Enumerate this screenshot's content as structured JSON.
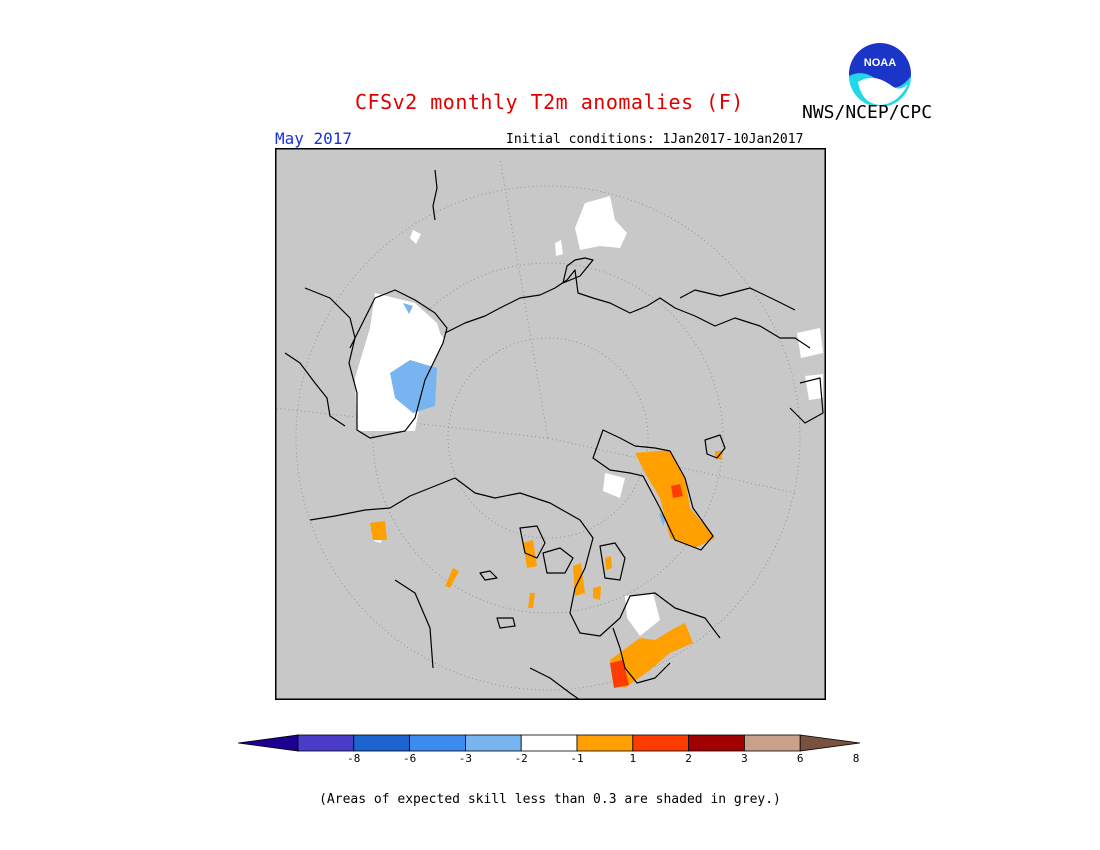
{
  "header": {
    "title": "CFSv2 monthly T2m anomalies (F)",
    "agency": "NWS/NCEP/CPC",
    "logo_text": "NOAA",
    "month": "May 2017",
    "initial_conditions": "Initial conditions: 1Jan2017-10Jan2017"
  },
  "legend": {
    "ticks": [
      "-8",
      "-6",
      "-3",
      "-2",
      "-1",
      "1",
      "2",
      "3",
      "6",
      "8"
    ],
    "colors": [
      "#1e0090",
      "#4a3cc8",
      "#1c64d2",
      "#3c8cf0",
      "#78b4f0",
      "#ffffff",
      "#ffa000",
      "#ff3c00",
      "#a00000",
      "#c8a08c",
      "#7a5040"
    ]
  },
  "map": {
    "background": "#c8c8c8",
    "projection": "polar-stereographic-north"
  },
  "footnote": "(Areas of expected skill less than 0.3 are shaded in grey.)"
}
